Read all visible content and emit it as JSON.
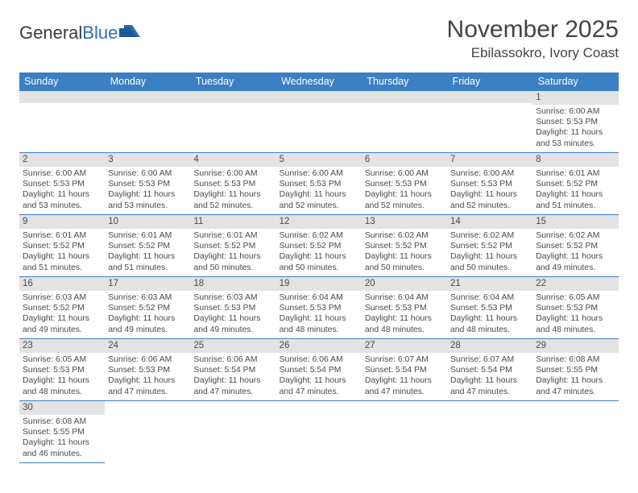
{
  "logo": {
    "part1": "General",
    "part2": "Blue"
  },
  "header": {
    "title": "November 2025",
    "location": "Ebilassokro, Ivory Coast"
  },
  "colors": {
    "header_bg": "#3b7fc4",
    "daynum_bg": "#e3e3e3",
    "border": "#3b7fc4",
    "logo_blue": "#2d6fb6"
  },
  "days_header": [
    "Sunday",
    "Monday",
    "Tuesday",
    "Wednesday",
    "Thursday",
    "Friday",
    "Saturday"
  ],
  "weeks": [
    [
      {
        "blank": true
      },
      {
        "blank": true
      },
      {
        "blank": true
      },
      {
        "blank": true
      },
      {
        "blank": true
      },
      {
        "blank": true
      },
      {
        "n": "1",
        "sunrise": "Sunrise: 6:00 AM",
        "sunset": "Sunset: 5:53 PM",
        "daylight": "Daylight: 11 hours and 53 minutes."
      }
    ],
    [
      {
        "n": "2",
        "sunrise": "Sunrise: 6:00 AM",
        "sunset": "Sunset: 5:53 PM",
        "daylight": "Daylight: 11 hours and 53 minutes."
      },
      {
        "n": "3",
        "sunrise": "Sunrise: 6:00 AM",
        "sunset": "Sunset: 5:53 PM",
        "daylight": "Daylight: 11 hours and 53 minutes."
      },
      {
        "n": "4",
        "sunrise": "Sunrise: 6:00 AM",
        "sunset": "Sunset: 5:53 PM",
        "daylight": "Daylight: 11 hours and 52 minutes."
      },
      {
        "n": "5",
        "sunrise": "Sunrise: 6:00 AM",
        "sunset": "Sunset: 5:53 PM",
        "daylight": "Daylight: 11 hours and 52 minutes."
      },
      {
        "n": "6",
        "sunrise": "Sunrise: 6:00 AM",
        "sunset": "Sunset: 5:53 PM",
        "daylight": "Daylight: 11 hours and 52 minutes."
      },
      {
        "n": "7",
        "sunrise": "Sunrise: 6:00 AM",
        "sunset": "Sunset: 5:53 PM",
        "daylight": "Daylight: 11 hours and 52 minutes."
      },
      {
        "n": "8",
        "sunrise": "Sunrise: 6:01 AM",
        "sunset": "Sunset: 5:52 PM",
        "daylight": "Daylight: 11 hours and 51 minutes."
      }
    ],
    [
      {
        "n": "9",
        "sunrise": "Sunrise: 6:01 AM",
        "sunset": "Sunset: 5:52 PM",
        "daylight": "Daylight: 11 hours and 51 minutes."
      },
      {
        "n": "10",
        "sunrise": "Sunrise: 6:01 AM",
        "sunset": "Sunset: 5:52 PM",
        "daylight": "Daylight: 11 hours and 51 minutes."
      },
      {
        "n": "11",
        "sunrise": "Sunrise: 6:01 AM",
        "sunset": "Sunset: 5:52 PM",
        "daylight": "Daylight: 11 hours and 50 minutes."
      },
      {
        "n": "12",
        "sunrise": "Sunrise: 6:02 AM",
        "sunset": "Sunset: 5:52 PM",
        "daylight": "Daylight: 11 hours and 50 minutes."
      },
      {
        "n": "13",
        "sunrise": "Sunrise: 6:02 AM",
        "sunset": "Sunset: 5:52 PM",
        "daylight": "Daylight: 11 hours and 50 minutes."
      },
      {
        "n": "14",
        "sunrise": "Sunrise: 6:02 AM",
        "sunset": "Sunset: 5:52 PM",
        "daylight": "Daylight: 11 hours and 50 minutes."
      },
      {
        "n": "15",
        "sunrise": "Sunrise: 6:02 AM",
        "sunset": "Sunset: 5:52 PM",
        "daylight": "Daylight: 11 hours and 49 minutes."
      }
    ],
    [
      {
        "n": "16",
        "sunrise": "Sunrise: 6:03 AM",
        "sunset": "Sunset: 5:52 PM",
        "daylight": "Daylight: 11 hours and 49 minutes."
      },
      {
        "n": "17",
        "sunrise": "Sunrise: 6:03 AM",
        "sunset": "Sunset: 5:52 PM",
        "daylight": "Daylight: 11 hours and 49 minutes."
      },
      {
        "n": "18",
        "sunrise": "Sunrise: 6:03 AM",
        "sunset": "Sunset: 5:53 PM",
        "daylight": "Daylight: 11 hours and 49 minutes."
      },
      {
        "n": "19",
        "sunrise": "Sunrise: 6:04 AM",
        "sunset": "Sunset: 5:53 PM",
        "daylight": "Daylight: 11 hours and 48 minutes."
      },
      {
        "n": "20",
        "sunrise": "Sunrise: 6:04 AM",
        "sunset": "Sunset: 5:53 PM",
        "daylight": "Daylight: 11 hours and 48 minutes."
      },
      {
        "n": "21",
        "sunrise": "Sunrise: 6:04 AM",
        "sunset": "Sunset: 5:53 PM",
        "daylight": "Daylight: 11 hours and 48 minutes."
      },
      {
        "n": "22",
        "sunrise": "Sunrise: 6:05 AM",
        "sunset": "Sunset: 5:53 PM",
        "daylight": "Daylight: 11 hours and 48 minutes."
      }
    ],
    [
      {
        "n": "23",
        "sunrise": "Sunrise: 6:05 AM",
        "sunset": "Sunset: 5:53 PM",
        "daylight": "Daylight: 11 hours and 48 minutes."
      },
      {
        "n": "24",
        "sunrise": "Sunrise: 6:06 AM",
        "sunset": "Sunset: 5:53 PM",
        "daylight": "Daylight: 11 hours and 47 minutes."
      },
      {
        "n": "25",
        "sunrise": "Sunrise: 6:06 AM",
        "sunset": "Sunset: 5:54 PM",
        "daylight": "Daylight: 11 hours and 47 minutes."
      },
      {
        "n": "26",
        "sunrise": "Sunrise: 6:06 AM",
        "sunset": "Sunset: 5:54 PM",
        "daylight": "Daylight: 11 hours and 47 minutes."
      },
      {
        "n": "27",
        "sunrise": "Sunrise: 6:07 AM",
        "sunset": "Sunset: 5:54 PM",
        "daylight": "Daylight: 11 hours and 47 minutes."
      },
      {
        "n": "28",
        "sunrise": "Sunrise: 6:07 AM",
        "sunset": "Sunset: 5:54 PM",
        "daylight": "Daylight: 11 hours and 47 minutes."
      },
      {
        "n": "29",
        "sunrise": "Sunrise: 6:08 AM",
        "sunset": "Sunset: 5:55 PM",
        "daylight": "Daylight: 11 hours and 47 minutes."
      }
    ],
    [
      {
        "n": "30",
        "sunrise": "Sunrise: 6:08 AM",
        "sunset": "Sunset: 5:55 PM",
        "daylight": "Daylight: 11 hours and 46 minutes."
      },
      {
        "blank": true
      },
      {
        "blank": true
      },
      {
        "blank": true
      },
      {
        "blank": true
      },
      {
        "blank": true
      },
      {
        "blank": true
      }
    ]
  ]
}
